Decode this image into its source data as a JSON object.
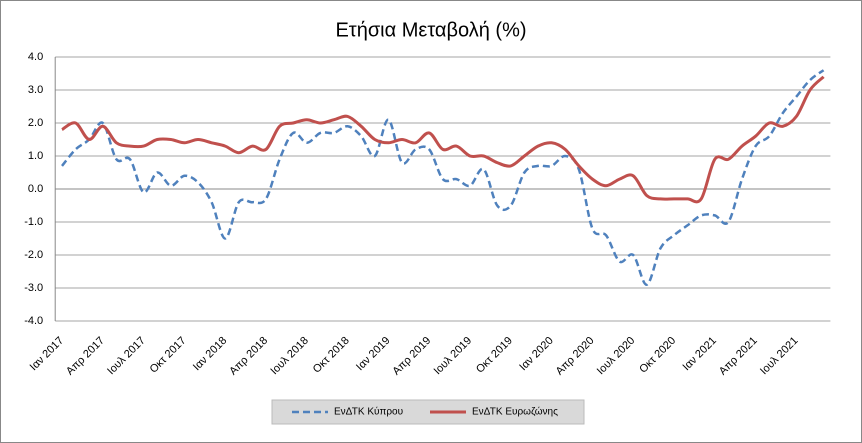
{
  "chart_data": {
    "type": "line",
    "title": "Ετήσια Μεταβολή (%)",
    "categories": [
      "Ιαν 2017",
      null,
      null,
      "Απρ 2017",
      null,
      null,
      "Ιουλ 2017",
      null,
      null,
      "Οκτ 2017",
      null,
      null,
      "Ιαν 2018",
      null,
      null,
      "Απρ 2018",
      null,
      null,
      "Ιουλ 2018",
      null,
      null,
      "Οκτ 2018",
      null,
      null,
      "Ιαν 2019",
      null,
      null,
      "Απρ 2019",
      null,
      null,
      "Ιουλ 2019",
      null,
      null,
      "Οκτ 2019",
      null,
      null,
      "Ιαν 2020",
      null,
      null,
      "Απρ 2020",
      null,
      null,
      "Ιουλ 2020",
      null,
      null,
      "Οκτ 2020",
      null,
      null,
      "Ιαν 2021",
      null,
      null,
      "Απρ 2021",
      null,
      null,
      "Ιουλ 2021",
      null,
      null
    ],
    "series": [
      {
        "name": "ΕνΔΤΚ Κύπρου",
        "color": "#4f81bd",
        "dash": true,
        "values": [
          0.7,
          1.2,
          1.5,
          2.0,
          0.9,
          0.9,
          -0.1,
          0.5,
          0.1,
          0.4,
          0.2,
          -0.4,
          -1.5,
          -0.4,
          -0.4,
          -0.3,
          0.9,
          1.7,
          1.4,
          1.7,
          1.7,
          1.9,
          1.6,
          1.0,
          2.1,
          0.8,
          1.2,
          1.2,
          0.3,
          0.3,
          0.1,
          0.6,
          -0.5,
          -0.5,
          0.5,
          0.7,
          0.7,
          1.0,
          0.6,
          -1.2,
          -1.4,
          -2.2,
          -2.0,
          -2.9,
          -1.8,
          -1.4,
          -1.1,
          -0.8,
          -0.8,
          -1.0,
          0.3,
          1.3,
          1.6,
          2.3,
          2.8,
          3.3,
          3.6
        ]
      },
      {
        "name": "ΕνΔΤΚ Ευρωζώνης",
        "color": "#c0504d",
        "dash": false,
        "values": [
          1.8,
          2.0,
          1.5,
          1.9,
          1.4,
          1.3,
          1.3,
          1.5,
          1.5,
          1.4,
          1.5,
          1.4,
          1.3,
          1.1,
          1.3,
          1.2,
          1.9,
          2.0,
          2.1,
          2.0,
          2.1,
          2.2,
          1.9,
          1.5,
          1.4,
          1.5,
          1.4,
          1.7,
          1.2,
          1.3,
          1.0,
          1.0,
          0.8,
          0.7,
          1.0,
          1.3,
          1.4,
          1.2,
          0.7,
          0.3,
          0.1,
          0.3,
          0.4,
          -0.2,
          -0.3,
          -0.3,
          -0.3,
          -0.3,
          0.9,
          0.9,
          1.3,
          1.6,
          2.0,
          1.9,
          2.2,
          3.0,
          3.4
        ]
      }
    ],
    "ylim": [
      -4,
      4
    ],
    "yticks": [
      {
        "value": -4,
        "label": "-4.0"
      },
      {
        "value": -3,
        "label": "-3.0"
      },
      {
        "value": -2,
        "label": "-2.0"
      },
      {
        "value": -1,
        "label": "-1.0"
      },
      {
        "value": 0,
        "label": "0.0"
      },
      {
        "value": 1,
        "label": "1.0"
      },
      {
        "value": 2,
        "label": "2.0"
      },
      {
        "value": 3,
        "label": "3.0"
      },
      {
        "value": 4,
        "label": "4.0"
      }
    ],
    "grid": true,
    "legend": "bottom"
  }
}
